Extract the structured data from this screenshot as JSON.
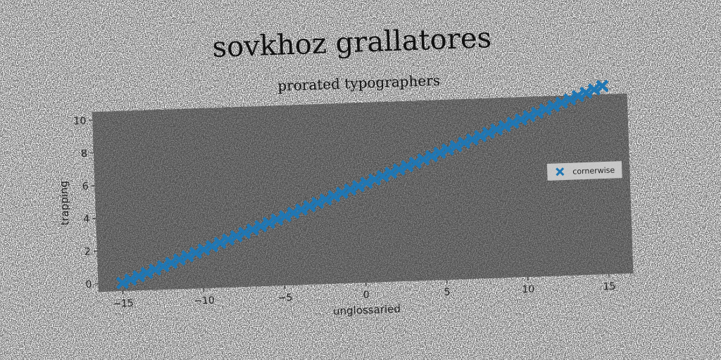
{
  "figure_title": "sovkhoz grallatores",
  "chart_data": {
    "type": "scatter",
    "title": "prorated typographers",
    "xlabel": "unglossaried",
    "ylabel": "trapping",
    "xlim": [
      -16.5,
      16.5
    ],
    "ylim": [
      -0.5,
      10.5
    ],
    "xticks": [
      -15,
      -10,
      -5,
      0,
      5,
      10,
      15
    ],
    "yticks": [
      0,
      2,
      4,
      6,
      8,
      10
    ],
    "xtick_labels": [
      "−15",
      "−10",
      "−5",
      "0",
      "5",
      "10",
      "15"
    ],
    "ytick_labels": [
      "0",
      "2",
      "4",
      "6",
      "8",
      "10"
    ],
    "grid": false,
    "legend_position": "center-right",
    "marker": "X",
    "series": [
      {
        "name": "cornerwise",
        "color": "#1f77b4",
        "x_range": [
          -15,
          15
        ],
        "y_range": [
          0,
          11
        ],
        "count": 60
      }
    ],
    "colors": {
      "plot_background": "#808080",
      "marker": "#1f77b4"
    }
  }
}
